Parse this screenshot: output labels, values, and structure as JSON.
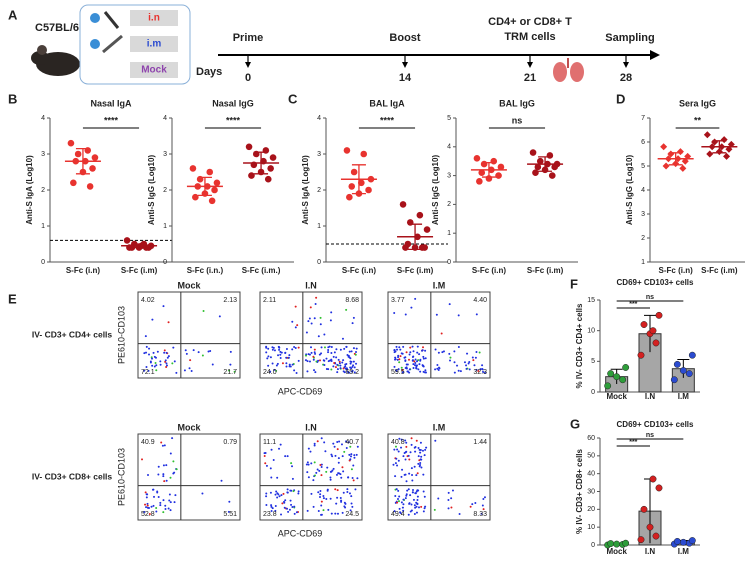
{
  "panel_labels": [
    "A",
    "B",
    "C",
    "D",
    "E",
    "F",
    "G"
  ],
  "schematic": {
    "strain": "C57BL/6",
    "routes": [
      "i.n",
      "i.m",
      "Mock"
    ]
  },
  "timeline": {
    "days_label": "Days",
    "events": [
      {
        "label_lines": [
          "Prime"
        ],
        "day": 0
      },
      {
        "label_lines": [
          "Boost"
        ],
        "day": 14
      },
      {
        "label_lines": [
          "CD4+ or CD8+ T",
          "TRM cells"
        ],
        "day": 21
      },
      {
        "label_lines": [
          "Sampling"
        ],
        "day": 28
      }
    ]
  },
  "flow": {
    "x_label": "APC-CD69",
    "y_label": "PE610-CD103",
    "rows": [
      {
        "label": "IV- CD3+ CD4+ cells",
        "plots": [
          {
            "title": "Mock",
            "quadrants": [
              "4.02",
              "2.13",
              "72.1",
              "21.7"
            ]
          },
          {
            "title": "I.N",
            "quadrants": [
              "2.11",
              "8.68",
              "24.0",
              "65.2"
            ]
          },
          {
            "title": "I.M",
            "quadrants": [
              "3.77",
              "4.40",
              "59.5",
              "32.3"
            ]
          }
        ]
      },
      {
        "label": "IV- CD3+ CD8+ cells",
        "plots": [
          {
            "title": "Mock",
            "quadrants": [
              "40.9",
              "0.79",
              "52.8",
              "5.51"
            ]
          },
          {
            "title": "I.N",
            "quadrants": [
              "11.1",
              "40.7",
              "23.8",
              "24.5"
            ]
          },
          {
            "title": "I.M",
            "quadrants": [
              "40.8",
              "1.44",
              "49.4",
              "8.33"
            ]
          }
        ]
      }
    ]
  },
  "chart_data": [
    {
      "type": "dot",
      "title": "Nasal IgA",
      "ylabel": "Anti-S IgA (Log10)",
      "categories": [
        "S-Fc (i.n)",
        "S-Fc (i.m)"
      ],
      "colors": [
        "#e8332f",
        "#a8121a"
      ],
      "groups": [
        {
          "values": [
            3.3,
            3.1,
            3.0,
            2.9,
            2.8,
            2.8,
            2.6,
            2.5,
            2.2,
            2.1
          ],
          "mean": 2.8,
          "sd": 0.35
        },
        {
          "values": [
            0.6,
            0.5,
            0.5,
            0.45,
            0.45,
            0.4,
            0.4,
            0.4,
            0.4,
            0.4
          ],
          "mean": 0.45,
          "sd": 0.05
        }
      ],
      "significance": "****",
      "threshold": 0.6,
      "ylim": [
        0,
        4
      ],
      "yticks": [
        0,
        1,
        2,
        3,
        4
      ]
    },
    {
      "type": "dot",
      "title": "Nasal IgG",
      "ylabel": "Anti-S IgG (Log10)",
      "categories": [
        "S-Fc (i.n.)",
        "S-Fc (i.m.)"
      ],
      "colors": [
        "#e8332f",
        "#a8121a"
      ],
      "groups": [
        {
          "values": [
            2.6,
            2.5,
            2.3,
            2.2,
            2.1,
            2.1,
            2.0,
            1.9,
            1.8,
            1.7
          ],
          "mean": 2.1,
          "sd": 0.25
        },
        {
          "values": [
            3.2,
            3.1,
            3.0,
            2.9,
            2.8,
            2.7,
            2.6,
            2.5,
            2.4,
            2.3
          ],
          "mean": 2.75,
          "sd": 0.3
        }
      ],
      "significance": "****",
      "ylim": [
        0,
        4
      ],
      "yticks": [
        0,
        1,
        2,
        3,
        4
      ]
    },
    {
      "type": "dot",
      "title": "BAL IgA",
      "ylabel": "Anti-S IgA (Log10)",
      "categories": [
        "S-Fc (i.n)",
        "S-Fc (i.m)"
      ],
      "colors": [
        "#e8332f",
        "#a8121a"
      ],
      "groups": [
        {
          "values": [
            3.1,
            3.0,
            2.5,
            2.3,
            2.2,
            2.1,
            2.0,
            1.9,
            1.8
          ],
          "mean": 2.3,
          "sd": 0.4
        },
        {
          "values": [
            1.6,
            1.3,
            1.1,
            0.9,
            0.7,
            0.5,
            0.4,
            0.4,
            0.4,
            0.4
          ],
          "mean": 0.7,
          "sd": 0.35
        }
      ],
      "significance": "****",
      "threshold": 0.5,
      "ylim": [
        0,
        4
      ],
      "yticks": [
        0,
        1,
        2,
        3,
        4
      ]
    },
    {
      "type": "dot",
      "title": "BAL IgG",
      "ylabel": "Anti-S IgG (Log10)",
      "categories": [
        "S-Fc (i.n)",
        "S-Fc (i.m)"
      ],
      "colors": [
        "#e8332f",
        "#a8121a"
      ],
      "groups": [
        {
          "values": [
            3.6,
            3.5,
            3.4,
            3.3,
            3.2,
            3.1,
            3.0,
            2.9,
            2.8
          ],
          "mean": 3.2,
          "sd": 0.25
        },
        {
          "values": [
            3.8,
            3.7,
            3.5,
            3.4,
            3.4,
            3.3,
            3.3,
            3.2,
            3.1,
            3.0
          ],
          "mean": 3.4,
          "sd": 0.25
        }
      ],
      "significance": "ns",
      "ylim": [
        0,
        5
      ],
      "yticks": [
        0,
        1,
        2,
        3,
        4,
        5
      ]
    },
    {
      "type": "dot",
      "title": "Sera IgG",
      "ylabel": "Anti-S IgG (Log10)",
      "categories": [
        "S-Fc (i.n)",
        "S-Fc (i.m)"
      ],
      "colors": [
        "#e8332f",
        "#a8121a"
      ],
      "groups": [
        {
          "values": [
            5.8,
            5.6,
            5.5,
            5.4,
            5.3,
            5.3,
            5.2,
            5.1,
            5.0,
            4.9
          ],
          "mean": 5.3,
          "sd": 0.25
        },
        {
          "values": [
            6.3,
            6.1,
            6.0,
            5.9,
            5.8,
            5.8,
            5.7,
            5.6,
            5.5,
            5.4
          ],
          "mean": 5.8,
          "sd": 0.25
        }
      ],
      "significance": "**",
      "ylim": [
        1,
        7
      ],
      "yticks": [
        1,
        2,
        3,
        4,
        5,
        6,
        7
      ]
    },
    {
      "type": "bar",
      "title": "CD69+ CD103+ cells",
      "ylabel": "% IV- CD3+ CD4+ cells",
      "categories": [
        "Mock",
        "I.N",
        "I.M"
      ],
      "color": "#a6a6a6",
      "values": [
        2.5,
        9.5,
        3.8
      ],
      "errors": [
        1.2,
        3,
        1.5
      ],
      "points": [
        [
          1,
          2,
          2.5,
          3,
          4
        ],
        [
          6,
          8,
          9.5,
          11,
          12.5,
          10
        ],
        [
          2,
          3,
          3.5,
          4.5,
          6
        ]
      ],
      "point_colors": [
        "#2e9d3a",
        "#d42020",
        "#2b4bd0"
      ],
      "significance": [
        "***",
        "ns"
      ],
      "ylim": [
        0,
        15
      ],
      "yticks": [
        0,
        5,
        10,
        15
      ]
    },
    {
      "type": "bar",
      "title": "CD69+ CD103+ cells",
      "ylabel": "% IV- CD3+ CD8+ cells",
      "categories": [
        "Mock",
        "I.N",
        "I.M"
      ],
      "color": "#a6a6a6",
      "values": [
        0.5,
        19,
        1.5
      ],
      "errors": [
        0.5,
        18,
        1
      ],
      "points": [
        [
          0,
          0.3,
          0.5,
          0.8,
          1
        ],
        [
          3,
          5,
          10,
          20,
          32,
          37
        ],
        [
          0.5,
          1,
          1.5,
          2,
          2.5
        ]
      ],
      "point_colors": [
        "#2e9d3a",
        "#d42020",
        "#2b4bd0"
      ],
      "significance": [
        "***",
        "ns"
      ],
      "ylim": [
        0,
        60
      ],
      "yticks": [
        0,
        10,
        20,
        30,
        40,
        50,
        60
      ]
    }
  ]
}
